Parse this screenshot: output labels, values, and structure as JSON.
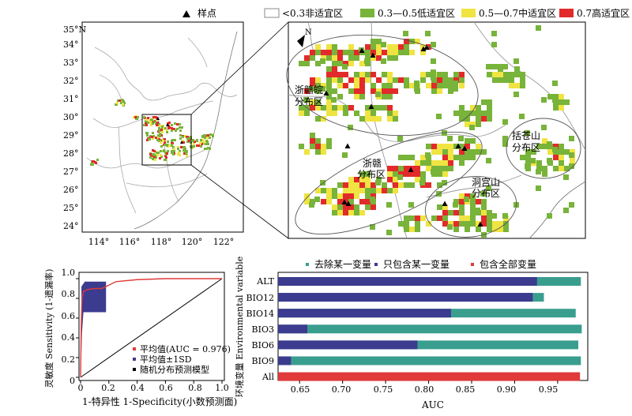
{
  "legend": {
    "items": [
      {
        "label": "样点",
        "symbol": "triangle"
      },
      {
        "label": "<0.3非适宜区",
        "color": "#ffffff"
      },
      {
        "label": "0.3—0.5低适宜区",
        "color": "#78b33a"
      },
      {
        "label": "0.5—0.7中适宜区",
        "color": "#f0e442"
      },
      {
        "label": "0.7高适宜区",
        "color": "#e32a2a"
      }
    ]
  },
  "map": {
    "lat_ticks": [
      "24°",
      "25°",
      "26°",
      "27°",
      "28°",
      "29°",
      "30°",
      "31°",
      "32°",
      "33°",
      "34°",
      "35°N"
    ],
    "lon_ticks": [
      "114°",
      "116°",
      "118°",
      "120°",
      "122°"
    ],
    "north": "N",
    "regions": [
      "浙赣皖\n分布区",
      "浙赣\n分布区",
      "括苍山\n分布区",
      "洞宫山\n分布区"
    ]
  },
  "colors": {
    "low": "#78b33a",
    "mid": "#f0e442",
    "high": "#e32a2a",
    "series_teal": "#3a9e8f",
    "series_navy": "#3b3b8f",
    "series_red": "#e03a3a"
  },
  "chart_data": [
    {
      "type": "line",
      "xlabel": "1-特异性 1-Specificity(小数预测面)",
      "ylabel": "灵敏度 Sensitivity (1-遗漏率)",
      "xlim": [
        0,
        1
      ],
      "ylim": [
        0,
        1
      ],
      "xticks": [
        "0",
        "0.2",
        "0.4",
        "0.6",
        "0.8",
        "1.0"
      ],
      "yticks": [
        "0",
        "0.2",
        "0.4",
        "0.6",
        "0.8",
        "1.0"
      ],
      "series": [
        {
          "name": "平均值(AUC = 0.976)",
          "x": [
            0,
            0.005,
            0.01,
            0.02,
            0.05,
            0.1,
            0.15,
            0.18,
            0.25,
            0.4,
            0.6,
            0.8,
            1.0
          ],
          "y": [
            0,
            0.55,
            0.8,
            0.87,
            0.89,
            0.9,
            0.9,
            0.92,
            0.97,
            0.99,
            1.0,
            1.0,
            1.0
          ]
        },
        {
          "name": "平均值±1SD"
        },
        {
          "name": "随机分布预测模型",
          "x": [
            0,
            1
          ],
          "y": [
            0,
            1
          ]
        }
      ]
    },
    {
      "type": "bar",
      "xlabel": "AUC",
      "ylabel": "环境变量 Environmental variable",
      "xlim": [
        0.625,
        0.985
      ],
      "xticks": [
        "0.65",
        "0.70",
        "0.75",
        "0.80",
        "0.85",
        "0.90",
        "0.95"
      ],
      "categories": [
        "ALT",
        "BIO12",
        "BIO14",
        "BIO3",
        "BIO6",
        "BIO9",
        "All"
      ],
      "series": [
        {
          "name": "去除某一变量",
          "values": [
            0.977,
            0.934,
            0.971,
            0.978,
            0.974,
            0.977,
            null
          ]
        },
        {
          "name": "只包含某一变量",
          "values": [
            0.926,
            0.921,
            0.826,
            0.659,
            0.787,
            0.64,
            null
          ]
        },
        {
          "name": "包含全部变量",
          "values": [
            null,
            null,
            null,
            null,
            null,
            null,
            0.976
          ]
        }
      ]
    }
  ]
}
